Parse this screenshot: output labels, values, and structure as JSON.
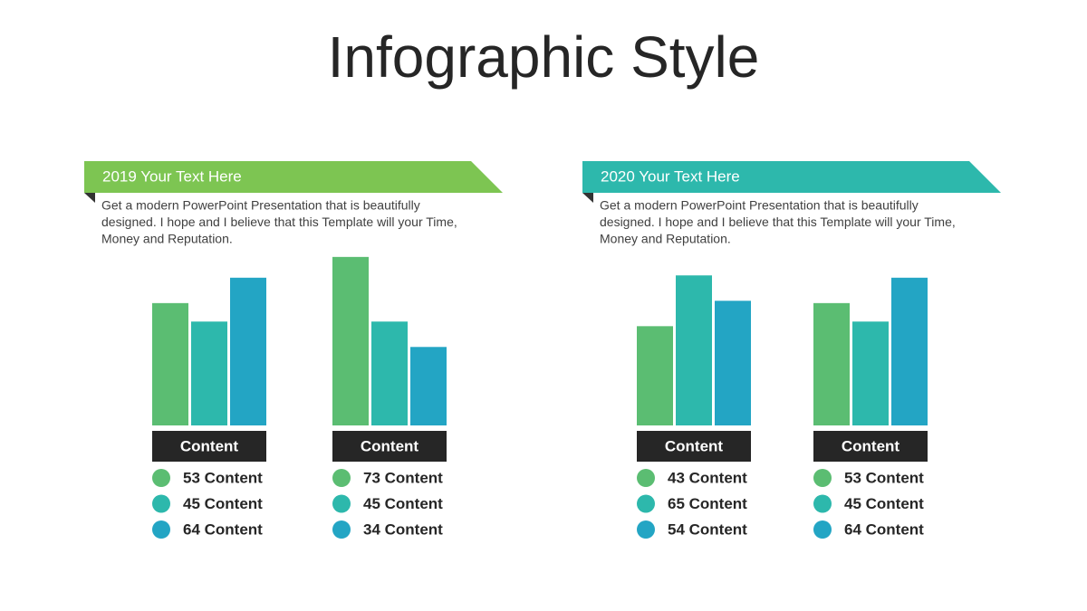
{
  "title": "Infographic Style",
  "panels": [
    {
      "banner": "2019 Your Text Here",
      "color": "#7dc552",
      "description": [
        "Get a modern PowerPoint  Presentation that is beautifully",
        "designed. I hope and I believe that this Template will your Time,",
        "Money and Reputation."
      ]
    },
    {
      "banner": "2020  Your Text Here",
      "color": "#2db8ac",
      "description": [
        "Get a modern PowerPoint  Presentation that is beautifully",
        "designed. I hope and I believe that this Template will your Time,",
        "Money and Reputation."
      ]
    }
  ],
  "chart_data": [
    {
      "type": "bar",
      "label": "Content",
      "values": [
        53,
        45,
        64
      ],
      "value_labels": [
        "53 Content",
        "45 Content",
        "64 Content"
      ],
      "colors": [
        "#5bbd72",
        "#2db8ac",
        "#23a5c4"
      ]
    },
    {
      "type": "bar",
      "label": "Content",
      "values": [
        73,
        45,
        34
      ],
      "value_labels": [
        "73 Content",
        "45 Content",
        "34 Content"
      ],
      "colors": [
        "#5bbd72",
        "#2db8ac",
        "#23a5c4"
      ]
    },
    {
      "type": "bar",
      "label": "Content",
      "values": [
        43,
        65,
        54
      ],
      "value_labels": [
        "43 Content",
        "65 Content",
        "54 Content"
      ],
      "colors": [
        "#5bbd72",
        "#2db8ac",
        "#23a5c4"
      ]
    },
    {
      "type": "bar",
      "label": "Content",
      "values": [
        53,
        45,
        64
      ],
      "value_labels": [
        "53 Content",
        "45 Content",
        "64 Content"
      ],
      "colors": [
        "#5bbd72",
        "#2db8ac",
        "#23a5c4"
      ]
    }
  ]
}
